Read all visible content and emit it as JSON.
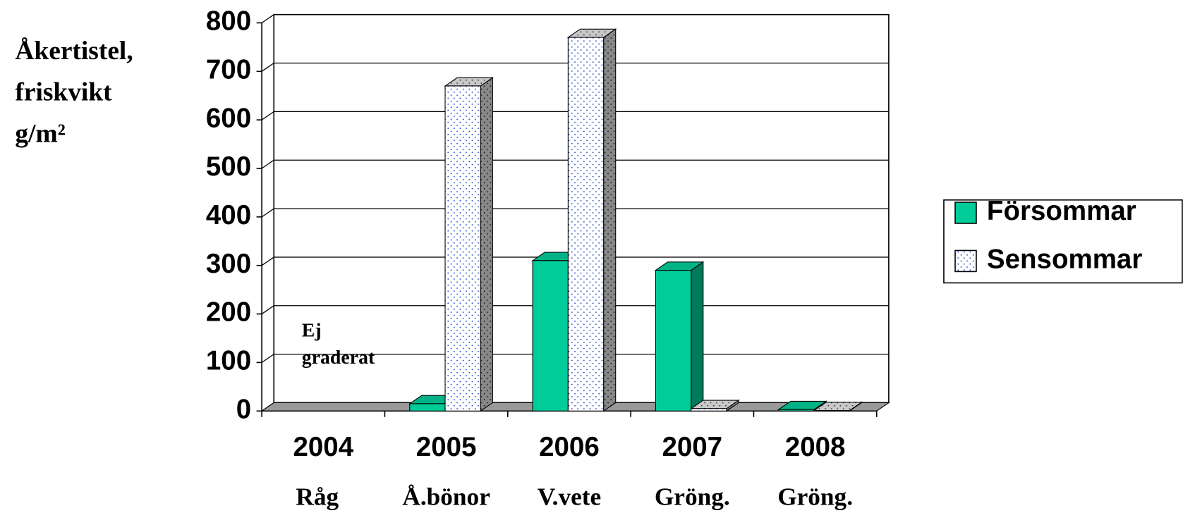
{
  "chart_data": {
    "type": "bar3d",
    "y_label_lines": [
      "Åkertistel,",
      "friskvikt",
      "g/m²"
    ],
    "categories": [
      "2004",
      "2005",
      "2006",
      "2007",
      "2008"
    ],
    "crops": [
      "Råg",
      "Å.bönor",
      "V.vete",
      "Gröng.",
      "Gröng."
    ],
    "annotation_lines": [
      "Ej",
      "graderat"
    ],
    "series": [
      {
        "name": "Försommar",
        "color": "#00cc99",
        "values": [
          null,
          15,
          310,
          290,
          3
        ]
      },
      {
        "name": "Sensommar",
        "color": "#ffffff",
        "values": [
          null,
          670,
          770,
          5,
          1
        ]
      }
    ],
    "ylim": [
      0,
      800
    ],
    "yticks": [
      0,
      100,
      200,
      300,
      400,
      500,
      600,
      700,
      800
    ],
    "grid": true,
    "legend": "right"
  }
}
